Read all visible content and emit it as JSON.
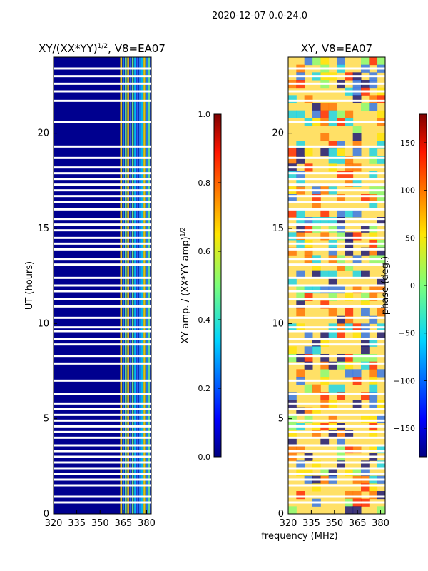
{
  "suptitle": "2020-12-07 0.0-24.0",
  "shared_xlabel": "frequency (MHz)",
  "chart_data": [
    {
      "type": "heatmap",
      "title": "XY/(XX*YY)^1/2, V8=EA07",
      "title_main": "XY/(XX*YY)",
      "title_sup": "1/2",
      "title_tail": ", V8=EA07",
      "xlabel": "frequency (MHz)",
      "ylabel": "UT (hours)",
      "xlim": [
        320,
        383
      ],
      "ylim": [
        0,
        24
      ],
      "xticks": [
        320,
        335,
        350,
        365,
        380
      ],
      "yticks": [
        0,
        5,
        10,
        15,
        20
      ],
      "colorbar": {
        "label_main": "XY amp. / (XX*YY amp)",
        "label_sup": "1/2",
        "range": [
          0.0,
          1.0
        ],
        "ticks": [
          "0.0",
          "0.2",
          "0.4",
          "0.6",
          "0.8",
          "1.0"
        ],
        "tick_values": [
          0.0,
          0.2,
          0.4,
          0.6,
          0.8,
          1.0
        ]
      },
      "flagged_hours": [
        0.6,
        0.9,
        1.5,
        1.8,
        2.1,
        2.4,
        2.7,
        3.0,
        3.3,
        3.6,
        4.0,
        4.3,
        4.6,
        4.9,
        5.2,
        5.5,
        5.8,
        6.3,
        7.0,
        7.9,
        8.3,
        8.9,
        9.2,
        9.6,
        9.8,
        10.3,
        10.9,
        11.3,
        11.7,
        12.0,
        12.4,
        13.1,
        13.4,
        13.9,
        14.2,
        14.5,
        14.9,
        15.2,
        15.5,
        16.0,
        16.4,
        16.7,
        17.0,
        17.3,
        17.6,
        17.9,
        18.2,
        18.7,
        19.3,
        20.6,
        21.7,
        22.2,
        22.6,
        23.0,
        23.4
      ]
    },
    {
      "type": "heatmap",
      "title": "XY, V8=EA07",
      "xlabel": "frequency (MHz)",
      "ylabel": "",
      "xlim": [
        320,
        383
      ],
      "ylim": [
        0,
        24
      ],
      "xticks": [
        320,
        335,
        350,
        365,
        380
      ],
      "yticks": [
        0,
        5,
        10,
        15,
        20
      ],
      "colorbar": {
        "label": "phase (deg.)",
        "range": [
          -180,
          180
        ],
        "ticks": [
          "150",
          "100",
          "50",
          "0",
          "−50",
          "−100",
          "−150"
        ],
        "tick_values": [
          150,
          100,
          50,
          0,
          -50,
          -100,
          -150
        ]
      },
      "flagged_hours": [
        0.6,
        0.9,
        1.5,
        1.8,
        2.1,
        2.4,
        2.7,
        3.0,
        3.3,
        3.6,
        4.0,
        4.3,
        4.6,
        4.9,
        5.2,
        5.5,
        5.8,
        6.3,
        7.0,
        7.9,
        8.3,
        8.9,
        9.2,
        9.6,
        9.8,
        10.3,
        10.9,
        11.3,
        11.7,
        12.0,
        12.4,
        13.1,
        13.4,
        13.9,
        14.2,
        14.5,
        14.9,
        15.2,
        15.5,
        16.0,
        16.4,
        16.7,
        17.0,
        17.3,
        17.6,
        17.9,
        18.2,
        18.7,
        19.3,
        20.6,
        21.7,
        22.2,
        22.6,
        23.0,
        23.4
      ]
    }
  ]
}
